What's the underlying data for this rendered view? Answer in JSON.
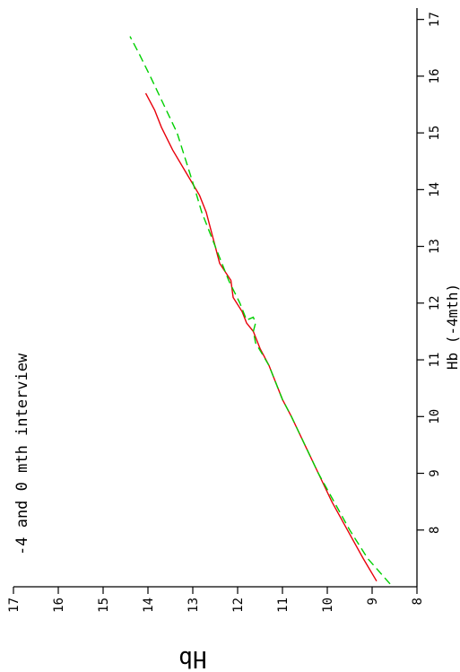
{
  "chart_data": {
    "type": "line",
    "title": "-4 and 0 mth interview",
    "xlabel": "Hb (-4mth)",
    "ylabel": "Hb",
    "xlim": [
      7,
      17.2
    ],
    "ylim": [
      8,
      17
    ],
    "xticks": [
      "8",
      "9",
      "10",
      "11",
      "12",
      "13",
      "14",
      "15",
      "16",
      "17"
    ],
    "yticks": [
      "17",
      "16",
      "15",
      "14",
      "13",
      "12",
      "11",
      "10",
      "9",
      "8"
    ],
    "series": [
      {
        "color": "#e8000b",
        "style": "solid",
        "x": [
          7.1,
          7.5,
          8.0,
          8.5,
          9.0,
          9.5,
          10.0,
          10.3,
          10.6,
          10.9,
          11.2,
          11.5,
          11.65,
          11.85,
          12.1,
          12.4,
          12.7,
          13.0,
          13.3,
          13.6,
          13.9,
          14.3,
          14.7,
          15.1,
          15.4,
          15.7
        ],
        "y": [
          8.9,
          9.2,
          9.55,
          9.9,
          10.2,
          10.5,
          10.8,
          11.0,
          11.15,
          11.3,
          11.5,
          11.65,
          11.8,
          11.9,
          12.1,
          12.15,
          12.4,
          12.5,
          12.6,
          12.7,
          12.85,
          13.15,
          13.45,
          13.7,
          13.85,
          14.05
        ]
      },
      {
        "color": "#00d000",
        "style": "dashed",
        "x": [
          7.05,
          7.5,
          8.0,
          8.5,
          9.0,
          9.5,
          10.0,
          10.3,
          10.6,
          10.9,
          11.1,
          11.3,
          11.5,
          11.65,
          11.75,
          11.7,
          12.0,
          12.4,
          12.8,
          13.2,
          13.6,
          14.0,
          14.5,
          15.0,
          15.5,
          16.0,
          16.4,
          16.7
        ],
        "y": [
          8.6,
          9.1,
          9.5,
          9.85,
          10.2,
          10.5,
          10.8,
          11.0,
          11.15,
          11.3,
          11.45,
          11.6,
          11.65,
          11.6,
          11.65,
          11.8,
          11.95,
          12.2,
          12.4,
          12.6,
          12.8,
          12.95,
          13.15,
          13.35,
          13.65,
          13.95,
          14.2,
          14.4
        ]
      }
    ]
  }
}
